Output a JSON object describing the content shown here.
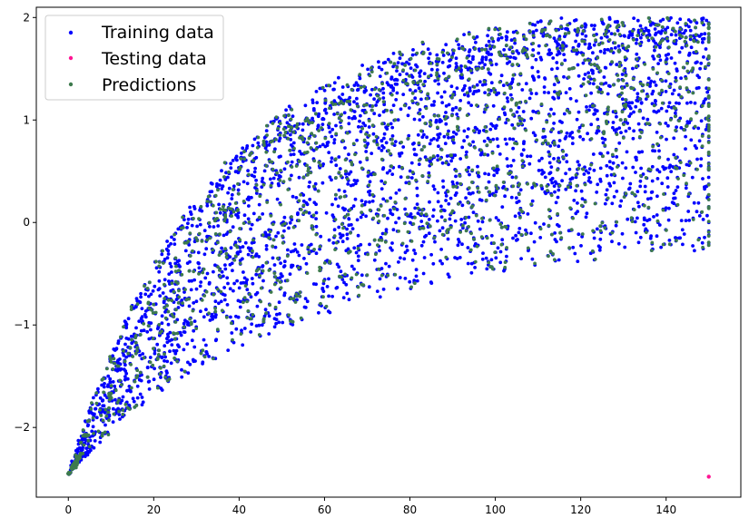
{
  "chart_data": {
    "type": "scatter",
    "title": "",
    "xlabel": "",
    "ylabel": "",
    "xlim": [
      -7.5,
      157.5
    ],
    "ylim": [
      -2.68,
      2.1
    ],
    "xticks": [
      0,
      20,
      40,
      60,
      80,
      100,
      120,
      140
    ],
    "yticks": [
      -2,
      -1,
      0,
      1,
      2
    ],
    "xtick_labels": [
      "0",
      "20",
      "40",
      "60",
      "80",
      "100",
      "120",
      "140"
    ],
    "ytick_labels": [
      "−2",
      "−1",
      "0",
      "1",
      "2"
    ],
    "grid": false,
    "legend_position": "top-left",
    "model": {
      "description": "Points lie on saturating curves y = ymin + A*(1 - exp(-x/tau)) with x from 0 to 150",
      "y_min": -2.45,
      "families": [
        {
          "A": 2.45,
          "tau": 50
        },
        {
          "A": 2.75,
          "tau": 48
        },
        {
          "A": 3.05,
          "tau": 46
        },
        {
          "A": 3.15,
          "tau": 44
        },
        {
          "A": 3.45,
          "tau": 43
        },
        {
          "A": 3.65,
          "tau": 42
        },
        {
          "A": 3.85,
          "tau": 41
        },
        {
          "A": 4.05,
          "tau": 40
        },
        {
          "A": 4.25,
          "tau": 40
        },
        {
          "A": 4.45,
          "tau": 40
        },
        {
          "A": 4.45,
          "tau": 35
        },
        {
          "A": 4.35,
          "tau": 33
        }
      ]
    },
    "series": [
      {
        "name": "Training data",
        "color": "#0000ff",
        "points": [
          [
            0,
            -2.45
          ],
          [
            150,
            1.9
          ],
          [
            150,
            0.0
          ]
        ]
      },
      {
        "name": "Testing data",
        "color": "#ff1493",
        "points": [
          [
            150,
            -2.48
          ]
        ]
      },
      {
        "name": "Predictions",
        "color": "#3d7a4d",
        "points": [
          [
            0,
            -2.45
          ],
          [
            150,
            1.9
          ],
          [
            150,
            0.01
          ]
        ]
      }
    ]
  }
}
